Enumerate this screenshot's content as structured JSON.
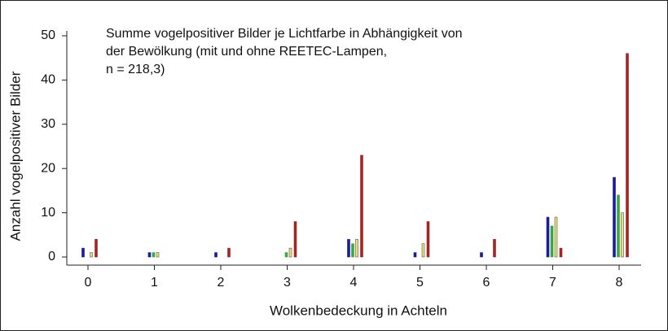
{
  "chart_data": {
    "type": "bar",
    "title_lines": [
      "Summe vogelpositiver Bilder je Lichtfarbe in Abhängigkeit von",
      "der Bewölkung (mit und ohne REETEC-Lampen,",
      "n = 218,3)"
    ],
    "x_label": "Wolkenbedeckung in Achteln",
    "y_label": "Anzahl vogelpositiver Bilder",
    "categories": [
      "0",
      "1",
      "2",
      "3",
      "4",
      "5",
      "6",
      "7",
      "8"
    ],
    "series": [
      {
        "color": "#1c1c96",
        "values": [
          2,
          1,
          1,
          0,
          4,
          1,
          1,
          9,
          18
        ]
      },
      {
        "color": "#36a83c",
        "values": [
          0,
          1,
          0,
          1,
          3,
          0,
          0,
          7,
          14
        ]
      },
      {
        "color": "#e6df7a",
        "values": [
          1,
          1,
          0,
          2,
          4,
          3,
          0,
          9,
          10
        ]
      },
      {
        "color": "#a32424",
        "values": [
          4,
          0,
          2,
          8,
          23,
          8,
          4,
          2,
          46
        ]
      }
    ],
    "ylim": [
      0,
      50
    ],
    "yticks": [
      0,
      10,
      20,
      30,
      40,
      50
    ]
  }
}
